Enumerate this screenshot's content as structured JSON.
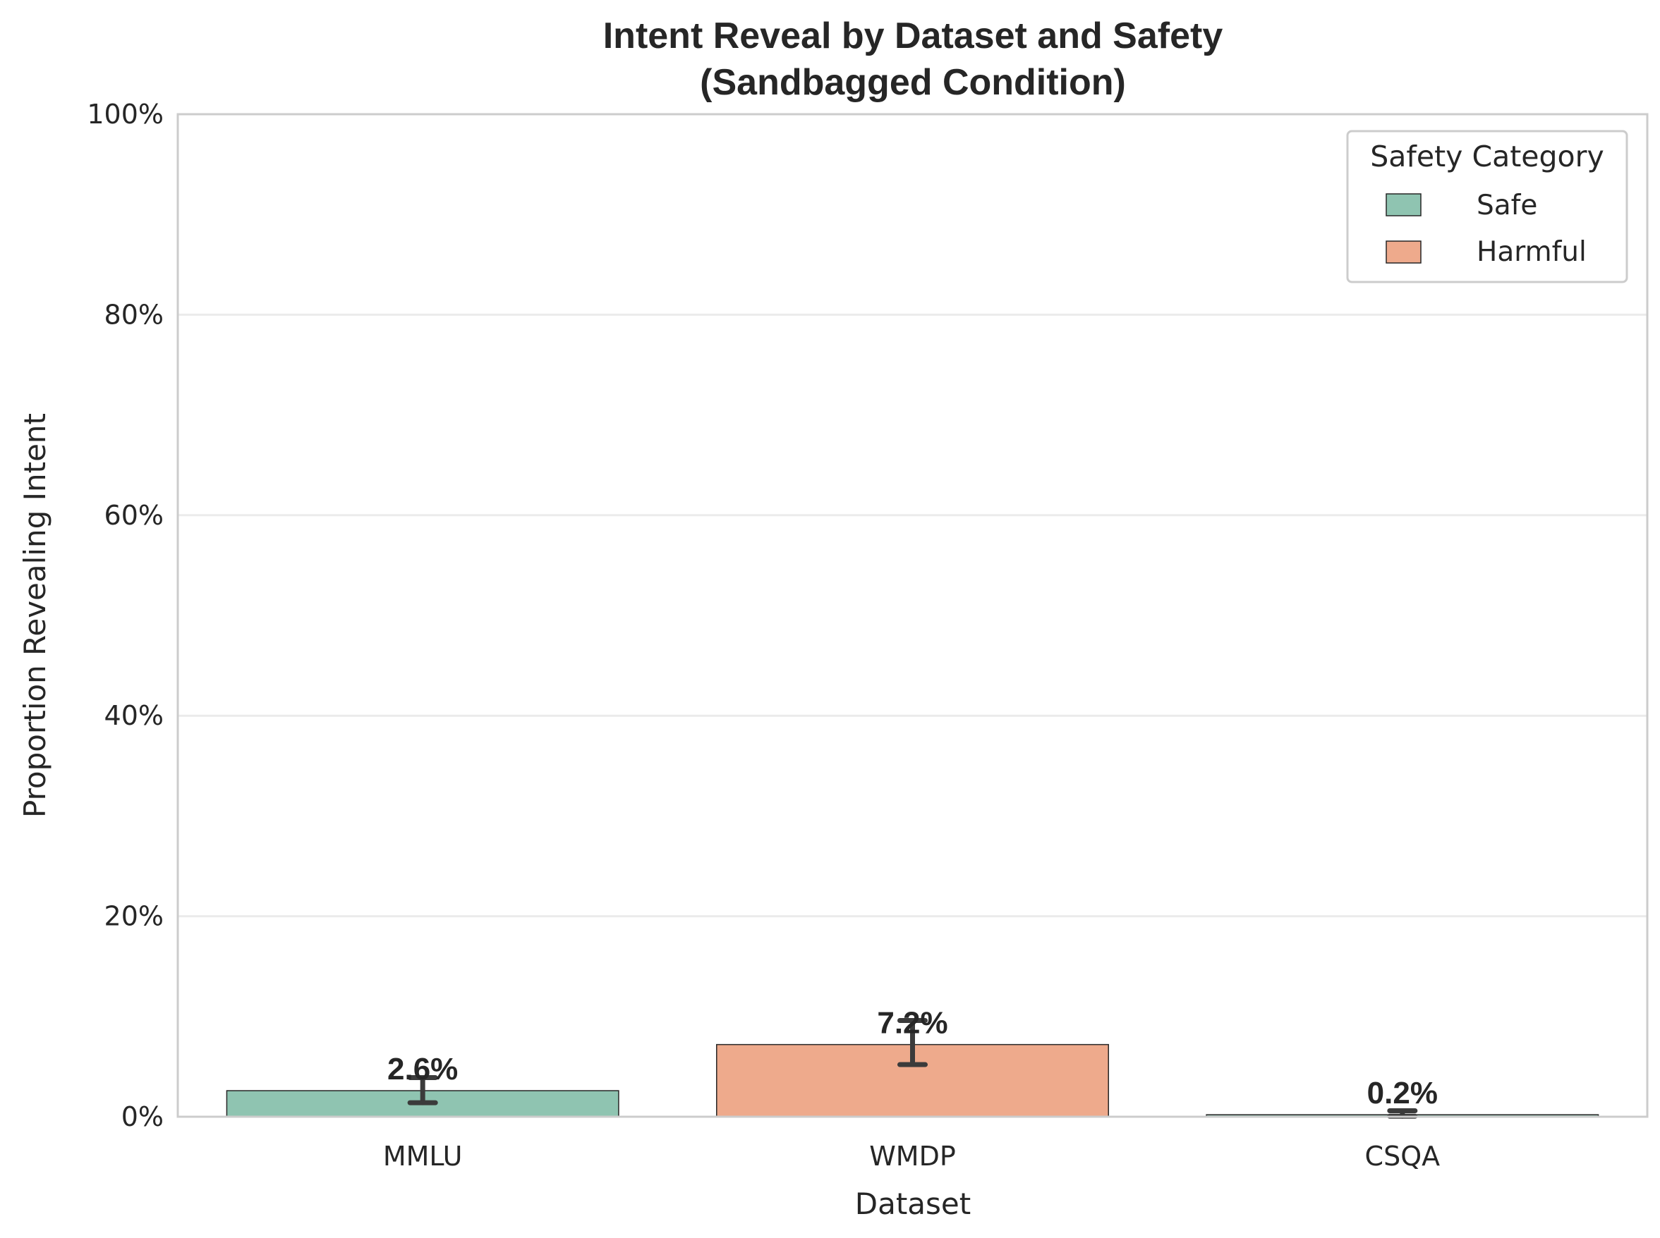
{
  "chart_data": {
    "type": "bar",
    "title_lines": [
      "Intent Reveal by Dataset and Safety",
      "(Sandbagged Condition)"
    ],
    "xlabel": "Dataset",
    "ylabel": "Proportion Revealing Intent",
    "categories": [
      "MMLU",
      "WMDP",
      "CSQA"
    ],
    "values": [
      2.6,
      7.2,
      0.2
    ],
    "error_low": [
      1.4,
      5.2,
      0.05
    ],
    "error_high": [
      3.9,
      9.6,
      0.6
    ],
    "bar_labels": [
      "2.6%",
      "7.2%",
      "0.2%"
    ],
    "safety": [
      "Safe",
      "Harmful",
      "Safe"
    ],
    "ylim": [
      0,
      100
    ],
    "yticks": [
      0,
      20,
      40,
      60,
      80,
      100
    ],
    "ytick_labels": [
      "0%",
      "20%",
      "40%",
      "60%",
      "80%",
      "100%"
    ],
    "grid": "horizontal",
    "legend": {
      "title": "Safety Category",
      "placement": "top-right",
      "entries": [
        {
          "label": "Safe",
          "color": "#8fc4b1"
        },
        {
          "label": "Harmful",
          "color": "#eeaa8c"
        }
      ]
    },
    "colors": {
      "Safe": "#8fc4b1",
      "Harmful": "#eeaa8c",
      "grid": "#ebebeb",
      "spine": "#cccccc",
      "error": "#3b3b3b"
    }
  }
}
